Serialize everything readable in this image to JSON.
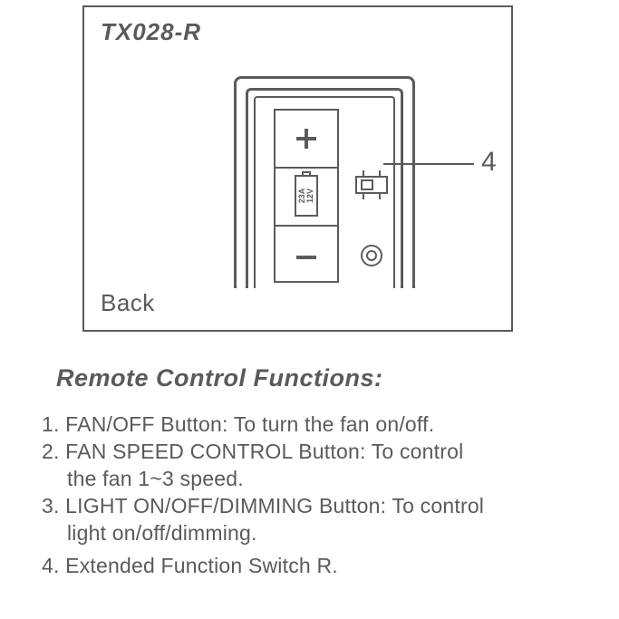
{
  "panel": {
    "model": "TX028-R",
    "back_label": "Back",
    "callout_number": "4",
    "battery": {
      "line1": "23A",
      "line2": "12V"
    }
  },
  "heading": "Remote Control Functions:",
  "functions": {
    "item1": "1. FAN/OFF Button: To turn the fan on/off.",
    "item2a": "2. FAN SPEED CONTROL Button: To control",
    "item2b": "the fan 1~3 speed.",
    "item3a": "3. LIGHT ON/OFF/DIMMING Button: To control",
    "item3b": "light on/off/dimming.",
    "item4": "4. Extended Function Switch R."
  },
  "colors": {
    "stroke": "#5a5b5d",
    "text": "#595a5c",
    "background": "#ffffff"
  }
}
